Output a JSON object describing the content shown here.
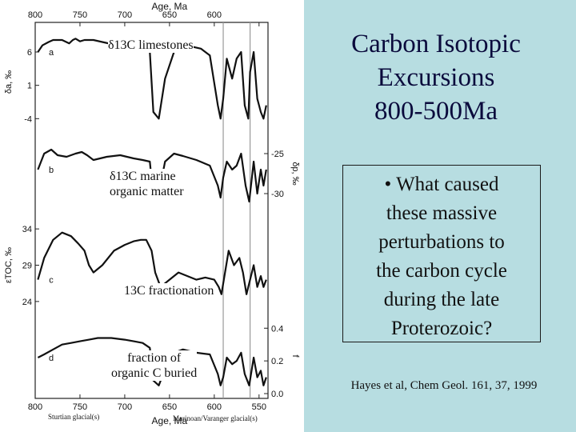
{
  "slide": {
    "title": "Carbon Isotopic\nExcursions\n800-500Ma",
    "question": "• What caused\nthese massive\nperturbations to\nthe carbon cycle\nduring the late\nProterozoic?",
    "citation": "Hayes et al, Chem Geol. 161, 37, 1999"
  },
  "figure": {
    "overlay_labels": {
      "a": "δ13C limestones",
      "b": "δ13C marine\norganic matter",
      "c": "13C fractionation",
      "d": "fraction of\norganic C buried"
    },
    "glacial_labels": {
      "sturtian": "Sturtian glacial(s)",
      "marinoan": "Marinoan/Varanger glacial(s)"
    }
  },
  "chart_data": {
    "type": "line",
    "xlabel": "Age, Ma",
    "x_direction": "decreasing",
    "xlim": [
      800,
      540
    ],
    "x_ticks": [
      800,
      750,
      700,
      650,
      600,
      550
    ],
    "series_colors": [
      "#111111"
    ],
    "guide_lines_x": [
      590,
      560
    ],
    "panels": [
      {
        "id": "a",
        "ylabel": "δa, ‰",
        "y_ticks": [
          "6",
          "1",
          "-4"
        ],
        "y_tick_values": [
          6,
          1,
          -4
        ],
        "ylim": [
          -6,
          9
        ],
        "x": [
          797,
          792,
          785,
          780,
          770,
          762,
          758,
          755,
          750,
          745,
          735,
          725,
          715,
          705,
          690,
          680,
          672,
          668,
          662,
          655,
          645,
          635,
          625,
          615,
          605,
          596,
          593,
          590,
          586,
          580,
          575,
          570,
          566,
          562,
          560,
          556,
          552,
          548,
          545,
          542
        ],
        "values": [
          6,
          7,
          7.5,
          7.8,
          7.8,
          7.3,
          7.8,
          8,
          7.6,
          7.8,
          7.8,
          7.5,
          7.2,
          7.4,
          7,
          6.8,
          6,
          -3,
          -4,
          2,
          6,
          7,
          6.8,
          6.5,
          5.5,
          -2,
          -4,
          -1,
          5,
          2,
          5,
          6,
          -2,
          -4,
          3,
          6,
          -1,
          -3,
          -4,
          -2
        ]
      },
      {
        "id": "b",
        "ylabel": "δp, ‰",
        "y_ticks": [
          "-25",
          "-30"
        ],
        "y_tick_values": [
          -25,
          -30
        ],
        "ylim": [
          -32,
          -23
        ],
        "x": [
          797,
          790,
          782,
          775,
          765,
          755,
          748,
          742,
          735,
          720,
          705,
          690,
          680,
          672,
          668,
          662,
          655,
          645,
          635,
          620,
          605,
          596,
          593,
          590,
          586,
          580,
          575,
          570,
          565,
          561,
          556,
          552,
          548,
          545,
          542
        ],
        "values": [
          -27,
          -25,
          -24.5,
          -25.2,
          -25.4,
          -25,
          -24.8,
          -25.2,
          -25.8,
          -25.4,
          -25.2,
          -25.6,
          -25.8,
          -26,
          -30.5,
          -30,
          -26,
          -25,
          -25.3,
          -25.8,
          -26.5,
          -29,
          -30.5,
          -28,
          -26,
          -27,
          -26.5,
          -25,
          -29,
          -31,
          -26,
          -30,
          -27,
          -29,
          -27
        ]
      },
      {
        "id": "c",
        "ylabel": "εTOC, ‰",
        "y_ticks": [
          "34",
          "29",
          "24"
        ],
        "y_tick_values": [
          34,
          29,
          24
        ],
        "ylim": [
          22,
          36
        ],
        "x": [
          797,
          790,
          780,
          770,
          760,
          752,
          745,
          740,
          735,
          725,
          712,
          700,
          690,
          682,
          676,
          670,
          666,
          660,
          650,
          640,
          630,
          620,
          610,
          600,
          595,
          592,
          588,
          584,
          578,
          572,
          568,
          564,
          560,
          556,
          552,
          548,
          545,
          542
        ],
        "values": [
          27,
          30,
          32.5,
          33.5,
          33,
          32,
          31,
          29,
          28,
          29,
          31,
          31.8,
          32.3,
          32.5,
          32.5,
          31,
          28,
          26,
          27,
          28,
          27.5,
          27,
          27.3,
          27,
          26,
          25,
          28,
          31,
          29,
          30,
          28,
          25,
          27,
          29,
          26,
          27.5,
          26,
          27
        ]
      },
      {
        "id": "d",
        "ylabel": "f",
        "y_ticks": [
          "0.4",
          "0.2",
          "0.0"
        ],
        "y_tick_values": [
          0.4,
          0.2,
          0.0
        ],
        "ylim": [
          0.0,
          0.46
        ],
        "x": [
          797,
          790,
          780,
          770,
          760,
          750,
          740,
          730,
          715,
          700,
          690,
          680,
          672,
          668,
          662,
          655,
          645,
          635,
          620,
          605,
          596,
          593,
          590,
          586,
          580,
          575,
          570,
          566,
          561,
          556,
          552,
          548,
          545,
          542
        ],
        "values": [
          0.22,
          0.24,
          0.27,
          0.3,
          0.31,
          0.32,
          0.33,
          0.34,
          0.34,
          0.33,
          0.32,
          0.31,
          0.28,
          0.08,
          0.05,
          0.15,
          0.25,
          0.27,
          0.25,
          0.24,
          0.12,
          0.05,
          0.1,
          0.22,
          0.18,
          0.2,
          0.25,
          0.12,
          0.05,
          0.22,
          0.1,
          0.14,
          0.05,
          0.1
        ]
      }
    ]
  }
}
